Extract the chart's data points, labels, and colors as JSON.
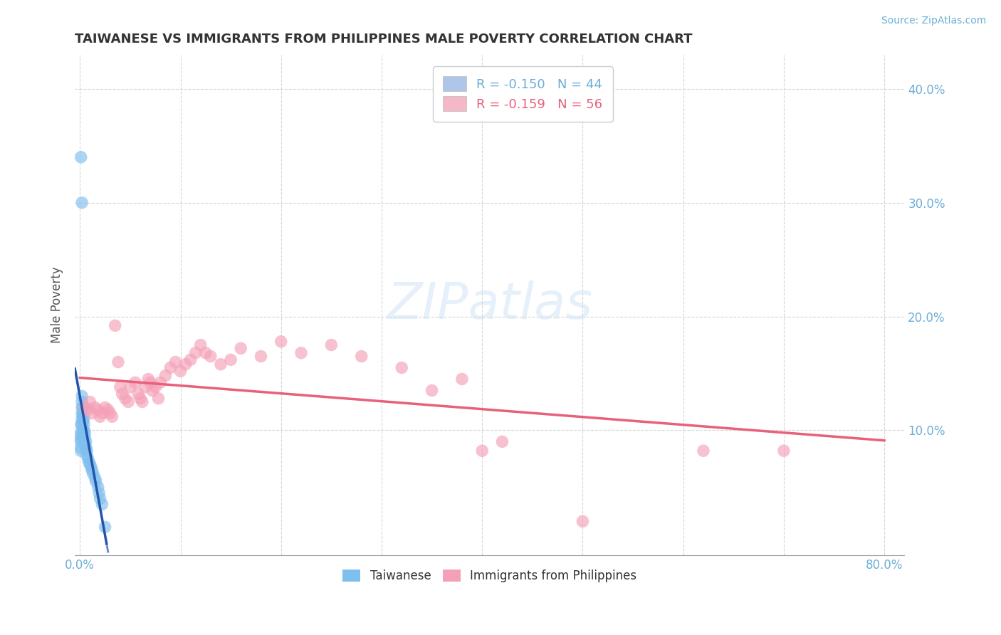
{
  "title": "TAIWANESE VS IMMIGRANTS FROM PHILIPPINES MALE POVERTY CORRELATION CHART",
  "source_text": "Source: ZipAtlas.com",
  "ylabel": "Male Poverty",
  "xlim": [
    -0.005,
    0.82
  ],
  "ylim": [
    -0.01,
    0.43
  ],
  "xtick_vals": [
    0.0,
    0.8
  ],
  "xticklabels": [
    "0.0%",
    "80.0%"
  ],
  "ytick_vals": [
    0.1,
    0.2,
    0.3,
    0.4
  ],
  "right_yticklabels": [
    "10.0%",
    "20.0%",
    "30.0%",
    "40.0%"
  ],
  "taiwanese_color": "#7fbfee",
  "philippines_color": "#f4a0b8",
  "taiwanese_line_color": "#2255aa",
  "philippines_line_color": "#e8607a",
  "background_color": "#ffffff",
  "grid_color": "#cccccc",
  "title_color": "#333333",
  "axis_label_color": "#555555",
  "right_ytick_color": "#6baed6",
  "source_color": "#6baed6",
  "legend_blue_color": "#aec6e8",
  "legend_pink_color": "#f4b8c8",
  "legend_text_blue": "#6baed6",
  "legend_text_pink": "#e8607a",
  "legend_line1": "R = -0.150   N = 44",
  "legend_line2": "R = -0.159   N = 56",
  "bottom_legend_label1": "Taiwanese",
  "bottom_legend_label2": "Immigrants from Philippines",
  "taiwanese_x": [
    0.001,
    0.001,
    0.001,
    0.001,
    0.001,
    0.001,
    0.001,
    0.001,
    0.002,
    0.002,
    0.002,
    0.002,
    0.002,
    0.002,
    0.002,
    0.003,
    0.003,
    0.003,
    0.003,
    0.003,
    0.004,
    0.004,
    0.004,
    0.004,
    0.005,
    0.005,
    0.005,
    0.006,
    0.006,
    0.007,
    0.007,
    0.008,
    0.009,
    0.01,
    0.011,
    0.012,
    0.013,
    0.015,
    0.016,
    0.018,
    0.019,
    0.02,
    0.022,
    0.025
  ],
  "taiwanese_y": [
    0.34,
    0.105,
    0.098,
    0.095,
    0.092,
    0.09,
    0.085,
    0.082,
    0.3,
    0.13,
    0.125,
    0.12,
    0.115,
    0.11,
    0.105,
    0.12,
    0.115,
    0.112,
    0.108,
    0.1,
    0.11,
    0.105,
    0.1,
    0.095,
    0.098,
    0.093,
    0.088,
    0.09,
    0.085,
    0.082,
    0.078,
    0.075,
    0.072,
    0.07,
    0.068,
    0.065,
    0.062,
    0.058,
    0.055,
    0.05,
    0.045,
    0.04,
    0.035,
    0.015
  ],
  "philippines_x": [
    0.005,
    0.008,
    0.01,
    0.012,
    0.015,
    0.018,
    0.02,
    0.022,
    0.025,
    0.028,
    0.03,
    0.032,
    0.035,
    0.038,
    0.04,
    0.042,
    0.045,
    0.048,
    0.05,
    0.055,
    0.058,
    0.06,
    0.062,
    0.065,
    0.068,
    0.07,
    0.072,
    0.075,
    0.078,
    0.08,
    0.085,
    0.09,
    0.095,
    0.1,
    0.105,
    0.11,
    0.115,
    0.12,
    0.125,
    0.13,
    0.14,
    0.15,
    0.16,
    0.18,
    0.2,
    0.22,
    0.25,
    0.28,
    0.32,
    0.35,
    0.38,
    0.4,
    0.42,
    0.5,
    0.62,
    0.7
  ],
  "philippines_y": [
    0.12,
    0.118,
    0.125,
    0.115,
    0.12,
    0.118,
    0.112,
    0.115,
    0.12,
    0.118,
    0.115,
    0.112,
    0.192,
    0.16,
    0.138,
    0.132,
    0.128,
    0.125,
    0.138,
    0.142,
    0.132,
    0.128,
    0.125,
    0.138,
    0.145,
    0.142,
    0.135,
    0.138,
    0.128,
    0.142,
    0.148,
    0.155,
    0.16,
    0.152,
    0.158,
    0.162,
    0.168,
    0.175,
    0.168,
    0.165,
    0.158,
    0.162,
    0.172,
    0.165,
    0.178,
    0.168,
    0.175,
    0.165,
    0.155,
    0.135,
    0.145,
    0.082,
    0.09,
    0.02,
    0.082,
    0.082
  ]
}
